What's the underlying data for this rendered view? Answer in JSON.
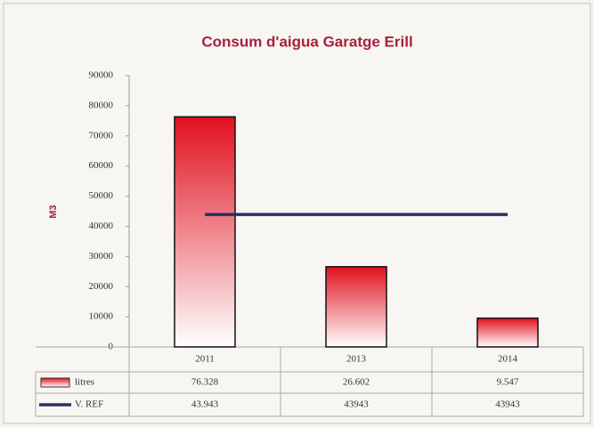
{
  "chart_data": {
    "type": "bar",
    "title": "Consum d'aigua Garatge Erill",
    "y_label": "M3",
    "categories": [
      "2011",
      "2013",
      "2014"
    ],
    "series": [
      {
        "name": "litres",
        "color": "#e0101e",
        "values": [
          76328,
          26602,
          9547
        ],
        "value_labels": [
          "76.328",
          "26.602",
          "9.547"
        ]
      },
      {
        "name": "V. REF",
        "type": "line",
        "color": "#2b2f66",
        "values": [
          43943,
          43943,
          43943
        ],
        "value_labels": [
          "43.943",
          "43943",
          "43943"
        ]
      }
    ],
    "ylim": [
      0,
      90000
    ],
    "yticks": [
      0,
      10000,
      20000,
      30000,
      40000,
      50000,
      60000,
      70000,
      80000,
      90000
    ],
    "grid": false
  }
}
